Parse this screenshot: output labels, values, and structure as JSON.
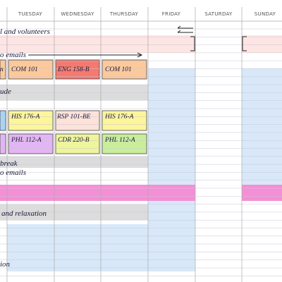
{
  "header": {
    "days": [
      "TUESDAY",
      "WEDNESDAY",
      "THURSDAY",
      "FRIDAY",
      "SATURDAY",
      "SUNDAY"
    ]
  },
  "notes": [
    "l and volunteers",
    "o emails",
    "ude",
    "break",
    "o emails",
    "and relaxation",
    "ion"
  ],
  "classes": [
    [
      "n",
      "COM 101",
      "ENG 158-B",
      "COM 101"
    ],
    [
      "HIS 176-A",
      "RSP 101-BE",
      "HIS 176-A"
    ],
    [
      "PHL 112-A",
      "CDR 220-B",
      "PHL 112-A"
    ]
  ]
}
